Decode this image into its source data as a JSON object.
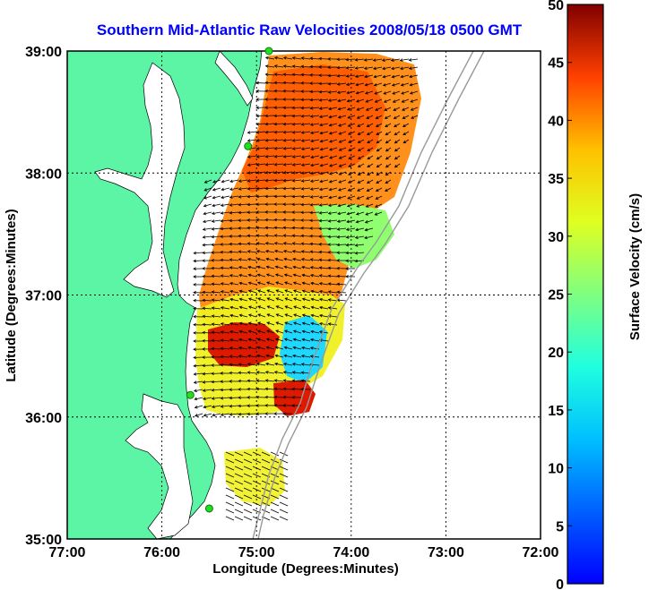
{
  "title": "Southern Mid-Atlantic Raw Velocities 2008/05/18 0500 GMT",
  "axes": {
    "xlabel": "Longitude (Degrees:Minutes)",
    "ylabel": "Latitude (Degrees:Minutes)",
    "xticks": [
      "77:00",
      "76:00",
      "75:00",
      "74:00",
      "73:00",
      "72:00"
    ],
    "yticks": [
      "39:00",
      "38:00",
      "37:00",
      "36:00",
      "35:00"
    ],
    "xlim": [
      -77,
      -72
    ],
    "ylim": [
      35,
      39
    ]
  },
  "colorbar": {
    "label": "Surface Velocity (cm/s)",
    "ticks": [
      "50",
      "45",
      "40",
      "35",
      "30",
      "25",
      "20",
      "15",
      "10",
      "5",
      "0"
    ],
    "range": [
      0,
      50
    ],
    "colormap": "jet"
  },
  "colors": {
    "land": "#5cf5a6",
    "title": "#0000ff",
    "station": "#22dd22"
  },
  "stations": [
    {
      "lon": -74.87,
      "lat": 39.0
    },
    {
      "lon": -75.09,
      "lat": 38.22
    },
    {
      "lon": -75.7,
      "lat": 36.18
    },
    {
      "lon": -75.5,
      "lat": 35.25
    }
  ]
}
